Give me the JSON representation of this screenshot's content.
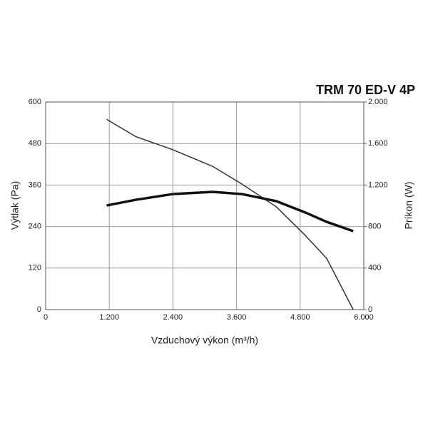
{
  "chart_data": {
    "type": "line",
    "title": "TRM 70 ED-V 4P",
    "x_label": "Vzduchový výkon (m³/h)",
    "y_label": "Výtlak (Pa)",
    "y2_label": "Príkon (W)",
    "x": [
      1150,
      1700,
      2400,
      3150,
      3700,
      4350,
      4900,
      5300,
      5800
    ],
    "series": [
      {
        "color": "#333333",
        "axis": "y",
        "values": [
          550,
          500,
          462,
          414,
          363,
          297,
          214,
          148,
          0
        ]
      },
      {
        "color": "#111111",
        "axis": "y2",
        "values": [
          1003,
          1058,
          1113,
          1134,
          1113,
          1045,
          935,
          845,
          756
        ]
      }
    ],
    "xlim": [
      0,
      6000
    ],
    "xticks": [
      0,
      {
        "value": 1200,
        "label": "1.200"
      },
      {
        "value": 2400,
        "label": "2.400"
      },
      {
        "value": 3600,
        "label": "3.600"
      },
      {
        "value": 4800,
        "label": "4.800"
      },
      {
        "value": 6000,
        "label": "6.000"
      }
    ],
    "ylim": [
      0,
      600
    ],
    "yticks": [
      0,
      120,
      240,
      360,
      480,
      600
    ],
    "y2lim": [
      0,
      2000
    ],
    "y2ticks": [
      0,
      400,
      800,
      {
        "value": 1200,
        "label": "1.200"
      },
      {
        "value": 1600,
        "label": "1.600"
      },
      {
        "value": 2000,
        "label": "2.000"
      }
    ],
    "grid": true
  }
}
